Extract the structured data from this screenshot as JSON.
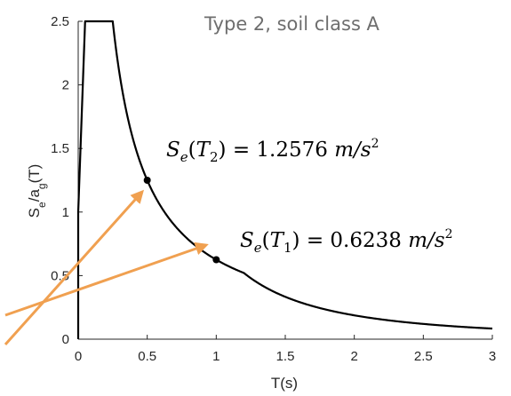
{
  "chart_data": {
    "type": "line",
    "title": "Type 2, soil class A",
    "xlabel": "T(s)",
    "ylabel": "S_e/a_g(T)",
    "xlim": [
      0,
      3
    ],
    "ylim": [
      0,
      2.5
    ],
    "x_ticks": [
      "0",
      "0.5",
      "1",
      "1.5",
      "2",
      "2.5",
      "3"
    ],
    "y_ticks": [
      "0",
      "0.5",
      "1",
      "1.5",
      "2",
      "2.5"
    ],
    "spectrum": {
      "ag_ratio": 1.0,
      "eta": 1.0,
      "plateau": 2.5,
      "TB": 0.05,
      "TC": 0.25,
      "TD": 1.2,
      "T_end": 3
    },
    "marked_points": [
      {
        "x": 0.5,
        "y": 1.25,
        "annotation": {
          "base": "S",
          "sub": "e",
          "arg": "T",
          "arg_sub": "2",
          "value": "1.2576",
          "unit": "m/s",
          "unit_sup": "2"
        }
      },
      {
        "x": 1.0,
        "y": 0.625,
        "annotation": {
          "base": "S",
          "sub": "e",
          "arg": "T",
          "arg_sub": "1",
          "value": "0.6238",
          "unit": "m/s",
          "unit_sup": "2"
        }
      }
    ],
    "arrow_color": "#F0A050",
    "line_color": "#000000",
    "grid": false
  }
}
